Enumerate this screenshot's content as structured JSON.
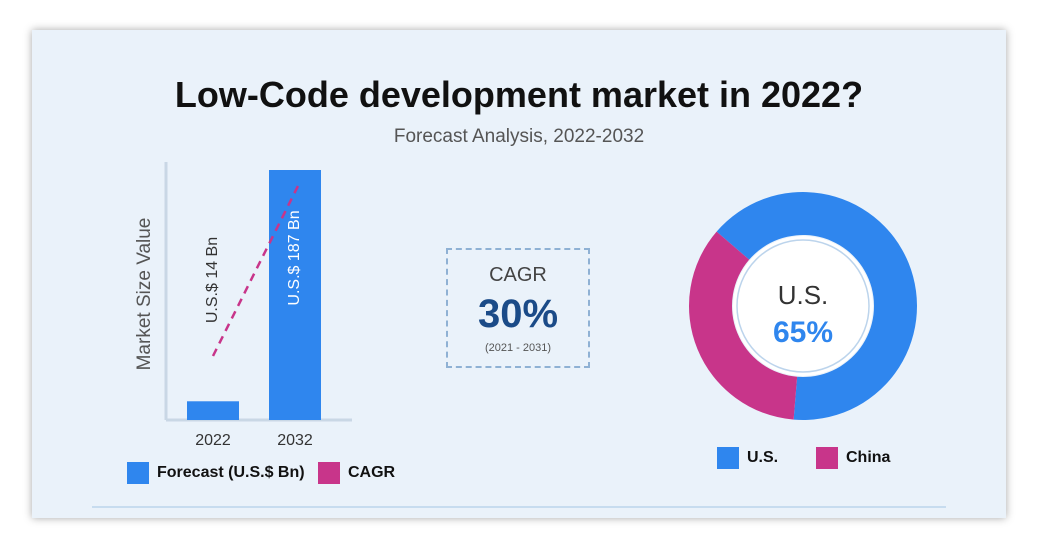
{
  "title": "Low-Code development market in 2022?",
  "subtitle": "Forecast Analysis, 2022-2032",
  "cagr": {
    "label": "CAGR",
    "value": "30%",
    "range": "(2021 - 2031)"
  },
  "colors": {
    "blue": "#2f86ee",
    "magenta": "#c8358a",
    "background": "#eaf2fa"
  },
  "chart_data": [
    {
      "type": "bar",
      "categories": [
        "2022",
        "2032"
      ],
      "series": [
        {
          "name": "Forecast (U.S.$ Bn)",
          "values": [
            14,
            187
          ]
        }
      ],
      "data_labels": [
        "U.S.$ 14 Bn",
        "U.S.$ 187 Bn"
      ],
      "ylabel": "Market Size Value",
      "ylim": [
        0,
        187
      ],
      "grid": false,
      "overlay_line": {
        "name": "CAGR",
        "style": "dashed",
        "color": "#c8358a"
      },
      "legend": {
        "placement": "bottom-left",
        "entries": [
          "Forecast (U.S.$ Bn)",
          "CAGR"
        ]
      }
    },
    {
      "type": "pie",
      "style": "donut",
      "labels": [
        "U.S.",
        "China"
      ],
      "values": [
        65,
        35
      ],
      "center_label": "U.S.",
      "center_value": "65%",
      "legend": {
        "placement": "bottom",
        "entries": [
          "U.S.",
          "China"
        ]
      }
    }
  ]
}
